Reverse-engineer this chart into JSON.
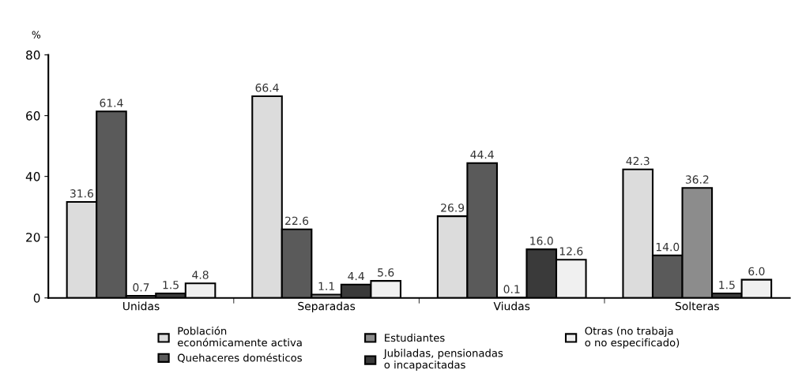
{
  "chart_data": {
    "type": "bar",
    "ylabel": "%",
    "categories": [
      "Unidas",
      "Separadas",
      "Viudas",
      "Solteras"
    ],
    "series": [
      {
        "name": "Población\neconómicamente activa",
        "color": "#dcdcdc",
        "values": [
          31.6,
          66.4,
          26.9,
          42.3
        ],
        "value_labels": [
          "31.6",
          "66.4",
          "26.9",
          "42.3"
        ]
      },
      {
        "name": "Quehaceres domésticos",
        "color": "#5a5a5a",
        "values": [
          61.4,
          22.6,
          44.4,
          14.0
        ],
        "value_labels": [
          "61.4",
          "22.6",
          "44.4",
          "14.0"
        ]
      },
      {
        "name": "Estudiantes",
        "color": "#8c8c8c",
        "values": [
          0.7,
          1.1,
          0.1,
          36.2
        ],
        "value_labels": [
          "0.7",
          "1.1",
          "0.1",
          "36.2"
        ]
      },
      {
        "name": "Jubiladas, pensionadas\no incapacitadas",
        "color": "#3a3a3a",
        "values": [
          1.5,
          4.4,
          16.0,
          1.5
        ],
        "value_labels": [
          "1.5",
          "4.4",
          "16.0",
          "1.5"
        ]
      },
      {
        "name": "Otras (no trabaja\no no especificado)",
        "color": "#f0f0f0",
        "values": [
          4.8,
          5.6,
          12.6,
          6.0
        ],
        "value_labels": [
          "4.8",
          "5.6",
          "12.6",
          "6.0"
        ]
      }
    ],
    "ylim": [
      0,
      80
    ],
    "yticks": [
      0,
      20,
      40,
      60,
      80
    ],
    "grid": false,
    "legend": "bottom"
  }
}
